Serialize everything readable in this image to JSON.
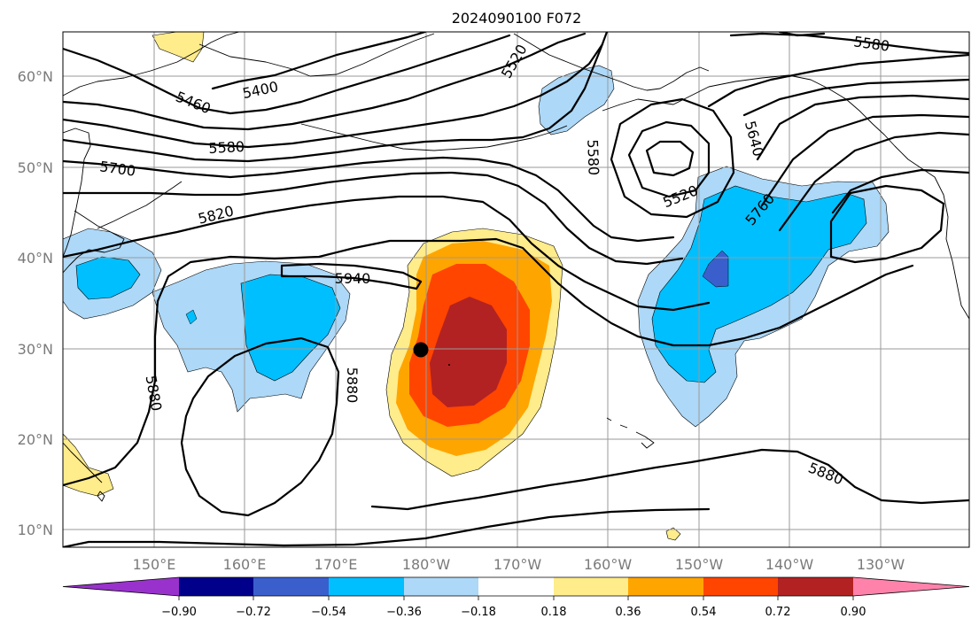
{
  "title": "2024090100 F072",
  "lat_labels": [
    "60°N",
    "50°N",
    "40°N",
    "30°N",
    "20°N",
    "10°N"
  ],
  "lon_labels": [
    "150°E",
    "160°E",
    "170°E",
    "180°W",
    "170°W",
    "160°W",
    "150°W",
    "140°W",
    "130°W"
  ],
  "colorbar": {
    "ticks": [
      "−0.90",
      "−0.72",
      "−0.54",
      "−0.36",
      "−0.18",
      "0.18",
      "0.36",
      "0.54",
      "0.72",
      "0.90"
    ],
    "colors": [
      "#9932cc",
      "#00008b",
      "#3a5fcd",
      "#00bfff",
      "#add8f7",
      "#ffffff",
      "#ffec8b",
      "#ffa500",
      "#ff4500",
      "#b22222",
      "#ff82ab"
    ]
  },
  "contour_labels": [
    "5580",
    "5520",
    "5460",
    "5400",
    "5580",
    "5700",
    "5820",
    "5940",
    "5880",
    "5880",
    "5580",
    "5520",
    "5640",
    "5760",
    "5880"
  ],
  "marker": {
    "lat": 30,
    "lon": "180°W"
  }
}
